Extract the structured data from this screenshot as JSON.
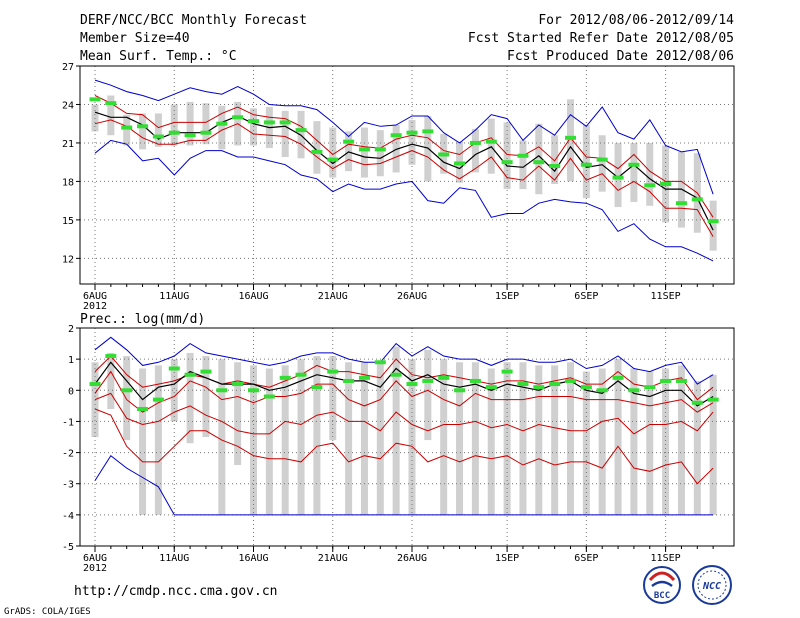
{
  "header": {
    "title": "DERF/NCC/BCC Monthly Forecast",
    "member_size": "Member Size=40",
    "variable": "Mean Surf. Temp.: °C",
    "period": "For 2012/08/06-2012/09/14",
    "fcst_started": "Fcst Started Refer Date 2012/08/05",
    "fcst_produced": "Fcst Produced Date 2012/08/06"
  },
  "footer": {
    "url": "http://cmdp.ncc.cma.gov.cn",
    "credit": "GrADS: COLA/IGES",
    "logo_bcc": "BCC",
    "logo_ncc": "NCC"
  },
  "colors": {
    "envelope": "#0000cc",
    "quartile": "#cc0000",
    "mean": "#000000",
    "median": "#33dd33",
    "box": "#d0d0d0",
    "grid": "#777777"
  },
  "chart_data": [
    {
      "type": "line",
      "title": "Mean Surf. Temp.: °C",
      "x_labels": [
        "6AUG",
        "11AUG",
        "16AUG",
        "21AUG",
        "26AUG",
        "1SEP",
        "6SEP",
        "11SEP"
      ],
      "x_label_days": [
        1,
        6,
        11,
        16,
        21,
        27,
        32,
        37
      ],
      "year_label": "2012",
      "ylim": [
        10,
        27
      ],
      "yticks": [
        12,
        15,
        18,
        21,
        24,
        27
      ],
      "days": [
        1,
        2,
        3,
        4,
        5,
        6,
        7,
        8,
        9,
        10,
        11,
        12,
        13,
        14,
        15,
        16,
        17,
        18,
        19,
        20,
        21,
        22,
        23,
        24,
        25,
        26,
        27,
        28,
        29,
        30,
        31,
        32,
        33,
        34,
        35,
        36,
        37,
        38,
        39,
        40
      ],
      "series": [
        {
          "name": "max",
          "values": [
            25.9,
            25.5,
            25.0,
            24.7,
            24.3,
            24.8,
            25.3,
            25.0,
            24.8,
            25.4,
            24.8,
            24.0,
            23.9,
            23.9,
            23.6,
            22.6,
            21.5,
            22.6,
            22.3,
            22.4,
            23.1,
            23.1,
            21.8,
            21.0,
            22.0,
            23.2,
            22.9,
            21.2,
            22.4,
            21.6,
            23.2,
            22.3,
            23.8,
            21.8,
            21.3,
            22.8,
            20.8,
            20.3,
            20.5,
            17.0
          ]
        },
        {
          "name": "q75",
          "values": [
            24.7,
            24.1,
            23.3,
            23.2,
            22.2,
            22.6,
            22.6,
            22.6,
            23.3,
            23.8,
            23.2,
            23.0,
            22.9,
            22.3,
            21.2,
            20.1,
            20.9,
            20.7,
            20.6,
            21.3,
            21.6,
            21.4,
            20.4,
            20.1,
            21.0,
            21.4,
            20.1,
            20.0,
            20.7,
            19.6,
            21.4,
            19.9,
            19.8,
            19.0,
            20.1,
            18.8,
            18.0,
            18.0,
            17.1,
            15.2
          ]
        },
        {
          "name": "mean",
          "values": [
            23.4,
            23.0,
            23.0,
            22.4,
            21.3,
            21.8,
            21.8,
            21.8,
            22.6,
            23.1,
            22.5,
            22.2,
            22.3,
            21.6,
            20.4,
            19.4,
            20.3,
            19.9,
            19.8,
            20.5,
            20.9,
            20.6,
            19.5,
            19.0,
            20.1,
            20.7,
            19.2,
            19.1,
            20.0,
            18.8,
            20.7,
            19.1,
            19.3,
            18.3,
            19.3,
            18.2,
            17.4,
            17.4,
            16.7,
            14.2
          ]
        },
        {
          "name": "q25",
          "values": [
            22.5,
            22.8,
            22.3,
            21.4,
            20.9,
            20.9,
            21.2,
            21.2,
            22.0,
            22.5,
            21.7,
            21.6,
            21.5,
            20.9,
            19.9,
            19.0,
            19.7,
            19.3,
            19.4,
            19.9,
            20.4,
            19.9,
            18.9,
            18.2,
            19.0,
            19.9,
            18.3,
            18.1,
            19.2,
            18.1,
            19.8,
            18.1,
            18.6,
            17.3,
            18.0,
            17.2,
            15.9,
            15.9,
            15.8,
            13.7
          ]
        },
        {
          "name": "min",
          "values": [
            20.2,
            21.2,
            20.9,
            19.6,
            19.8,
            18.5,
            19.8,
            20.4,
            20.4,
            19.9,
            19.9,
            19.6,
            19.3,
            18.5,
            18.2,
            17.2,
            17.8,
            17.4,
            17.4,
            17.8,
            18.0,
            16.5,
            16.3,
            17.5,
            17.3,
            15.2,
            15.5,
            15.5,
            16.3,
            16.6,
            16.4,
            16.3,
            15.8,
            14.1,
            14.7,
            13.5,
            12.9,
            12.9,
            12.4,
            11.8
          ]
        },
        {
          "name": "median",
          "values": [
            24.4,
            24.1,
            22.2,
            22.3,
            21.5,
            21.8,
            21.6,
            21.8,
            22.5,
            23.0,
            22.7,
            22.6,
            22.6,
            22.0,
            20.3,
            19.7,
            21.1,
            20.5,
            20.5,
            21.6,
            21.8,
            21.9,
            20.1,
            19.4,
            21.0,
            21.1,
            19.5,
            20.0,
            19.5,
            19.2,
            21.4,
            19.3,
            19.7,
            18.3,
            19.3,
            17.7,
            17.8,
            16.3,
            16.6,
            14.9
          ]
        },
        {
          "name": "box_top",
          "values": [
            24.0,
            24.7,
            23.2,
            23.3,
            23.3,
            24.0,
            24.2,
            24.1,
            23.9,
            24.2,
            23.7,
            23.8,
            23.5,
            23.5,
            22.7,
            22.2,
            21.9,
            22.2,
            22.0,
            22.4,
            22.8,
            23.1,
            21.7,
            21.1,
            22.1,
            22.9,
            22.6,
            21.2,
            22.5,
            21.6,
            24.4,
            22.4,
            21.6,
            21.0,
            21.0,
            21.0,
            20.8,
            20.3,
            20.2,
            16.5
          ]
        },
        {
          "name": "box_bottom",
          "values": [
            21.9,
            21.6,
            20.8,
            20.5,
            20.7,
            20.8,
            20.8,
            20.9,
            20.5,
            20.8,
            20.8,
            20.6,
            19.9,
            19.8,
            18.6,
            18.3,
            18.8,
            18.3,
            18.4,
            18.7,
            19.3,
            18.0,
            18.6,
            17.9,
            18.7,
            18.6,
            17.4,
            17.4,
            17.0,
            17.8,
            18.0,
            16.7,
            17.2,
            16.0,
            16.4,
            16.1,
            14.8,
            14.4,
            14.0,
            12.6
          ]
        }
      ]
    },
    {
      "type": "line",
      "title": "Prec.: log(mm/d)",
      "x_labels": [
        "6AUG",
        "11AUG",
        "16AUG",
        "21AUG",
        "26AUG",
        "1SEP",
        "6SEP",
        "11SEP"
      ],
      "x_label_days": [
        1,
        6,
        11,
        16,
        21,
        27,
        32,
        37
      ],
      "year_label": "2012",
      "ylim": [
        -5,
        2
      ],
      "yticks": [
        -5,
        -4,
        -3,
        -2,
        -1,
        0,
        1,
        2
      ],
      "days": [
        1,
        2,
        3,
        4,
        5,
        6,
        7,
        8,
        9,
        10,
        11,
        12,
        13,
        14,
        15,
        16,
        17,
        18,
        19,
        20,
        21,
        22,
        23,
        24,
        25,
        26,
        27,
        28,
        29,
        30,
        31,
        32,
        33,
        34,
        35,
        36,
        37,
        38,
        39,
        40
      ],
      "series": [
        {
          "name": "max",
          "values": [
            1.3,
            1.7,
            1.3,
            0.8,
            0.9,
            1.1,
            1.5,
            1.2,
            1.1,
            1.0,
            0.9,
            0.8,
            0.9,
            1.1,
            1.2,
            1.2,
            1.0,
            0.9,
            0.9,
            1.5,
            1.1,
            1.4,
            1.1,
            1.0,
            1.0,
            0.8,
            1.0,
            1.0,
            0.9,
            0.9,
            1.0,
            0.7,
            0.8,
            1.1,
            0.7,
            0.6,
            0.8,
            0.9,
            0.2,
            0.5
          ]
        },
        {
          "name": "q75",
          "values": [
            0.6,
            1.1,
            0.5,
            0.1,
            0.2,
            0.3,
            0.5,
            0.4,
            0.2,
            0.3,
            0.2,
            0.1,
            0.3,
            0.5,
            0.8,
            0.6,
            0.6,
            0.5,
            0.4,
            1.0,
            0.5,
            0.4,
            0.5,
            0.4,
            0.3,
            0.2,
            0.3,
            0.3,
            0.2,
            0.3,
            0.4,
            0.2,
            0.2,
            0.6,
            0.2,
            0.1,
            0.3,
            0.4,
            -0.3,
            0.1
          ]
        },
        {
          "name": "mean",
          "values": [
            0.2,
            0.9,
            0.3,
            -0.3,
            0.1,
            0.2,
            0.6,
            0.4,
            0.2,
            0.2,
            0.2,
            0.0,
            0.1,
            0.3,
            0.5,
            0.4,
            0.3,
            0.3,
            0.1,
            0.7,
            0.3,
            0.5,
            0.2,
            0.1,
            0.2,
            0.0,
            0.2,
            0.1,
            0.0,
            0.2,
            0.3,
            0.0,
            -0.1,
            0.3,
            -0.1,
            -0.2,
            0.0,
            0.0,
            -0.5,
            -0.2
          ]
        },
        {
          "name": "q25",
          "values": [
            -0.1,
            0.6,
            -0.3,
            -0.7,
            -0.4,
            -0.2,
            0.3,
            0.1,
            -0.3,
            -0.2,
            -0.4,
            -0.2,
            -0.2,
            -0.1,
            0.2,
            0.2,
            -0.3,
            -0.5,
            -0.3,
            0.3,
            -0.2,
            0.0,
            -0.3,
            -0.5,
            -0.1,
            -0.3,
            -0.3,
            -0.3,
            -0.2,
            -0.2,
            -0.2,
            -0.3,
            -0.3,
            -0.3,
            -0.4,
            -0.5,
            -0.4,
            -0.3,
            -0.7,
            -0.4
          ]
        },
        {
          "name": "p10",
          "values": [
            -0.3,
            -0.1,
            -0.9,
            -1.1,
            -1.0,
            -0.7,
            -0.5,
            -0.8,
            -1.0,
            -1.3,
            -1.4,
            -1.4,
            -1.0,
            -1.1,
            -0.8,
            -0.7,
            -1.0,
            -1.0,
            -1.3,
            -0.7,
            -1.1,
            -1.3,
            -1.1,
            -1.1,
            -1.0,
            -1.2,
            -1.1,
            -1.3,
            -1.1,
            -1.2,
            -1.3,
            -1.3,
            -1.0,
            -0.9,
            -1.4,
            -1.1,
            -1.1,
            -1.0,
            -1.3,
            -0.7
          ]
        },
        {
          "name": "p05",
          "values": [
            -0.6,
            -0.8,
            -1.8,
            -2.3,
            -2.3,
            -1.8,
            -1.3,
            -1.3,
            -1.6,
            -1.8,
            -2.1,
            -2.2,
            -2.2,
            -2.3,
            -1.8,
            -1.7,
            -2.3,
            -2.1,
            -2.2,
            -1.7,
            -1.8,
            -2.3,
            -2.1,
            -2.3,
            -2.1,
            -2.2,
            -2.1,
            -2.4,
            -2.2,
            -2.4,
            -2.3,
            -2.3,
            -2.5,
            -1.8,
            -2.5,
            -2.6,
            -2.4,
            -2.3,
            -3.0,
            -2.5
          ]
        },
        {
          "name": "min",
          "values": [
            -2.9,
            -2.1,
            -2.5,
            -2.8,
            -3.1,
            -4.0,
            -4.0,
            -4.0,
            -4.0,
            -4.0,
            -4.0,
            -4.0,
            -4.0,
            -4.0,
            -4.0,
            -4.0,
            -4.0,
            -4.0,
            -4.0,
            -4.0,
            -4.0,
            -4.0,
            -4.0,
            -4.0,
            -4.0,
            -4.0,
            -4.0,
            -4.0,
            -4.0,
            -4.0,
            -4.0,
            -4.0,
            -4.0,
            -4.0,
            -4.0,
            -4.0,
            -4.0,
            -4.0,
            -4.0,
            -4.0
          ]
        },
        {
          "name": "median",
          "values": [
            0.2,
            1.1,
            0.0,
            -0.6,
            -0.3,
            0.7,
            0.5,
            0.6,
            0.0,
            0.2,
            0.0,
            -0.2,
            0.4,
            0.5,
            0.1,
            0.6,
            0.3,
            0.4,
            0.9,
            0.5,
            0.2,
            0.3,
            0.4,
            0.0,
            0.3,
            0.1,
            0.6,
            0.2,
            0.1,
            0.2,
            0.3,
            0.1,
            0.0,
            0.4,
            0.0,
            0.1,
            0.3,
            0.3,
            -0.4,
            -0.3
          ]
        },
        {
          "name": "box_top",
          "values": [
            0.9,
            1.2,
            1.1,
            0.7,
            0.8,
            1.0,
            1.2,
            1.1,
            1.0,
            0.9,
            0.8,
            0.7,
            0.8,
            1.0,
            1.1,
            1.1,
            0.9,
            0.9,
            0.9,
            1.4,
            1.0,
            1.3,
            1.0,
            0.9,
            0.9,
            0.7,
            0.9,
            0.9,
            0.8,
            0.8,
            0.9,
            0.6,
            0.7,
            1.0,
            0.7,
            0.6,
            0.7,
            0.8,
            0.3,
            0.5
          ]
        },
        {
          "name": "box_bottom",
          "values": [
            -1.5,
            -0.6,
            -1.6,
            -4.0,
            -4.0,
            -1.0,
            -1.7,
            -1.5,
            -4.0,
            -2.4,
            -4.0,
            -4.0,
            -4.0,
            -4.0,
            -4.0,
            -1.6,
            -4.0,
            -4.0,
            -4.0,
            -4.0,
            -4.0,
            -1.6,
            -4.0,
            -4.0,
            -4.0,
            -4.0,
            -4.0,
            -4.0,
            -4.0,
            -4.0,
            -4.0,
            -4.0,
            -4.0,
            -4.0,
            -4.0,
            -4.0,
            -4.0,
            -4.0,
            -4.0,
            -4.0
          ]
        }
      ]
    }
  ]
}
